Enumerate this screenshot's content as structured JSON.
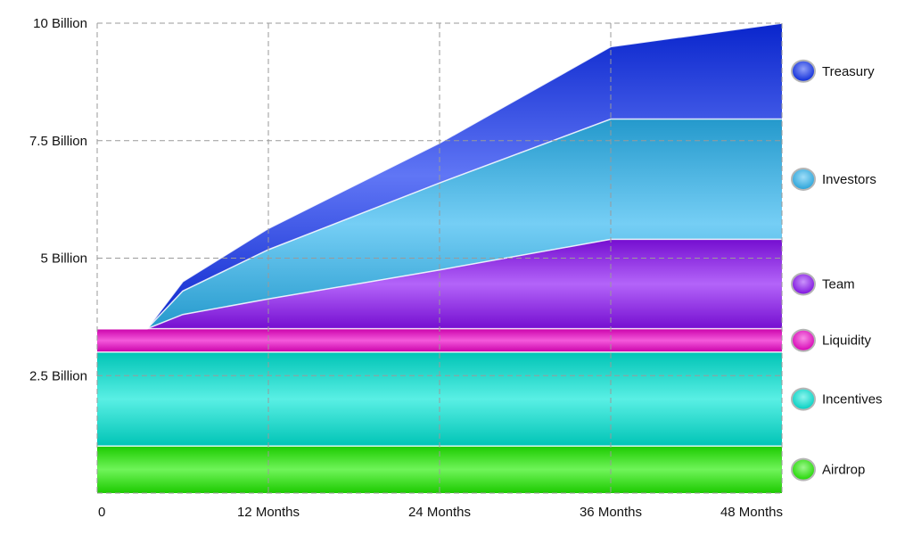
{
  "chart_data": {
    "type": "area",
    "stacked": true,
    "x": [
      0,
      3.5,
      6,
      12,
      24,
      36,
      48
    ],
    "x_ticks": [
      {
        "value": 0,
        "label": "0"
      },
      {
        "value": 12,
        "label": "12 Months"
      },
      {
        "value": 24,
        "label": "24 Months"
      },
      {
        "value": 36,
        "label": "36 Months"
      },
      {
        "value": 48,
        "label": "48 Months"
      }
    ],
    "y_ticks": [
      {
        "value": 2.5,
        "label": "2.5 Billion"
      },
      {
        "value": 5,
        "label": "5 Billion"
      },
      {
        "value": 7.5,
        "label": "7.5 Billion"
      },
      {
        "value": 10,
        "label": "10 Billion"
      }
    ],
    "xlim": [
      0,
      48
    ],
    "ylim": [
      0,
      10
    ],
    "grid": true,
    "legend_position": "right",
    "series": [
      {
        "name": "Airdrop",
        "color": "#22ee00",
        "values": [
          1,
          1,
          1,
          1,
          1,
          1,
          1
        ]
      },
      {
        "name": "Incentives",
        "color": "#00e6d6",
        "values": [
          2,
          2,
          2,
          2,
          2,
          2,
          2
        ]
      },
      {
        "name": "Liquidity",
        "color": "#ee00c8",
        "values": [
          0.5,
          0.5,
          0.5,
          0.5,
          0.5,
          0.5,
          0.5
        ]
      },
      {
        "name": "Team",
        "color": "#8a10f5",
        "values": [
          0,
          0,
          0.3,
          0.63,
          1.25,
          1.9,
          1.9
        ]
      },
      {
        "name": "Investors",
        "color": "#2ab4f0",
        "values": [
          0,
          0,
          0.5,
          1.05,
          1.85,
          2.56,
          2.56
        ]
      },
      {
        "name": "Treasury",
        "color": "#0a2cf0",
        "values": [
          0,
          0,
          0.2,
          0.45,
          0.85,
          1.54,
          2.04
        ]
      }
    ]
  }
}
